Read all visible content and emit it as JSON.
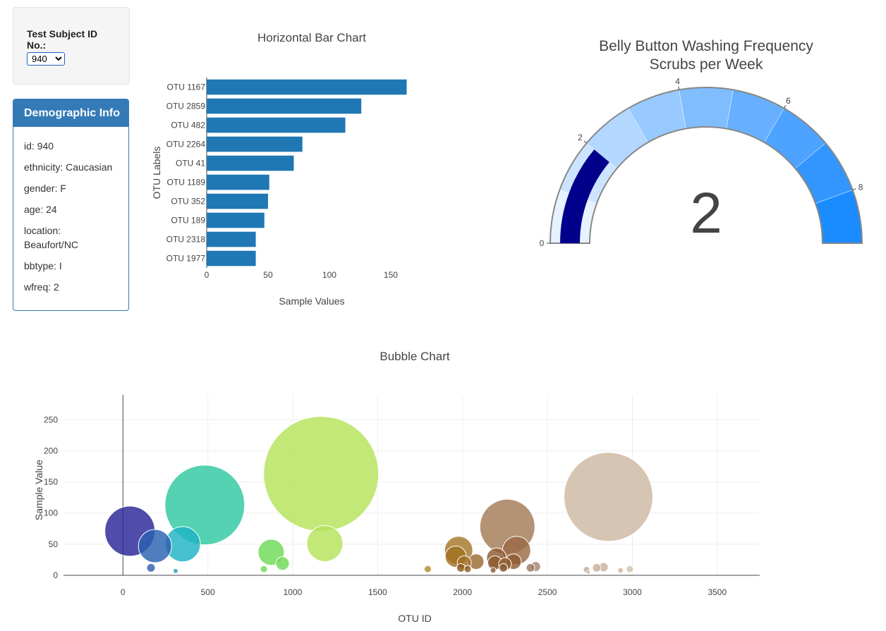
{
  "selector": {
    "label": "Test Subject ID No.:",
    "selected": "940"
  },
  "demographic": {
    "title": "Demographic Info",
    "lines": [
      "id: 940",
      "ethnicity: Caucasian",
      "gender: F",
      "age: 24",
      "location: Beaufort/NC",
      "bbtype: I",
      "wfreq: 2"
    ]
  },
  "colors": {
    "bar": "#1f77b4",
    "panel_accent": "#337ab7",
    "gauge_needle": "#00008b",
    "gauge_steps": [
      "#e6f2ff",
      "#cce4ff",
      "#b3d7ff",
      "#99caff",
      "#80bdff",
      "#66b0ff",
      "#4da3ff",
      "#3396ff",
      "#1a8cff"
    ]
  },
  "chart_data": [
    {
      "type": "bar",
      "orientation": "horizontal",
      "title": "Horizontal Bar Chart",
      "xlabel": "Sample Values",
      "ylabel": "OTU Labels",
      "xlim": [
        0,
        165
      ],
      "xticks": [
        0,
        50,
        100,
        150
      ],
      "categories": [
        "OTU 1167",
        "OTU 2859",
        "OTU 482",
        "OTU 2264",
        "OTU 41",
        "OTU 1189",
        "OTU 352",
        "OTU 189",
        "OTU 2318",
        "OTU 1977"
      ],
      "values": [
        163,
        126,
        113,
        78,
        71,
        51,
        50,
        47,
        40,
        40
      ]
    },
    {
      "type": "gauge",
      "title": "Belly Button Washing Frequency",
      "subtitle": "Scrubs per Week",
      "range": [
        0,
        9
      ],
      "ticks": [
        0,
        2,
        4,
        6,
        8
      ],
      "value": 2,
      "value_label": "2"
    },
    {
      "type": "scatter",
      "title": "Bubble Chart",
      "xlabel": "OTU ID",
      "ylabel": "Sample Value",
      "xlim": [
        -350,
        3750
      ],
      "ylim": [
        0,
        290
      ],
      "xticks": [
        0,
        500,
        1000,
        1500,
        2000,
        2500,
        3000,
        3500
      ],
      "yticks": [
        0,
        50,
        100,
        150,
        200,
        250
      ],
      "grid": true,
      "points": [
        {
          "x": 41,
          "y": 71,
          "color": "#2a2596"
        },
        {
          "x": 189,
          "y": 47,
          "color": "#2a62b0"
        },
        {
          "x": 352,
          "y": 50,
          "color": "#1fb3c5"
        },
        {
          "x": 482,
          "y": 113,
          "color": "#2ec8a0"
        },
        {
          "x": 165,
          "y": 12,
          "color": "#2f5fb0"
        },
        {
          "x": 310,
          "y": 7,
          "color": "#2a9fb8"
        },
        {
          "x": 873,
          "y": 37,
          "color": "#6fd957"
        },
        {
          "x": 940,
          "y": 19,
          "color": "#6fd957"
        },
        {
          "x": 830,
          "y": 10,
          "color": "#6fd957"
        },
        {
          "x": 1167,
          "y": 163,
          "color": "#b4e35a"
        },
        {
          "x": 1189,
          "y": 51,
          "color": "#b4e35a"
        },
        {
          "x": 1795,
          "y": 10,
          "color": "#b08f2a"
        },
        {
          "x": 1977,
          "y": 40,
          "color": "#a5782a"
        },
        {
          "x": 1960,
          "y": 30,
          "color": "#a07020"
        },
        {
          "x": 2010,
          "y": 20,
          "color": "#a07025"
        },
        {
          "x": 2080,
          "y": 22,
          "color": "#9a6a30"
        },
        {
          "x": 1990,
          "y": 12,
          "color": "#8e5a20"
        },
        {
          "x": 2030,
          "y": 10,
          "color": "#8e5a20"
        },
        {
          "x": 2264,
          "y": 78,
          "color": "#a37a55"
        },
        {
          "x": 2318,
          "y": 40,
          "color": "#9a6a45"
        },
        {
          "x": 2200,
          "y": 28,
          "color": "#8e5a30"
        },
        {
          "x": 2190,
          "y": 20,
          "color": "#8e5a30"
        },
        {
          "x": 2250,
          "y": 18,
          "color": "#8e5a30"
        },
        {
          "x": 2300,
          "y": 22,
          "color": "#8e5a35"
        },
        {
          "x": 2240,
          "y": 12,
          "color": "#8a5a35"
        },
        {
          "x": 2180,
          "y": 8,
          "color": "#8a5a35"
        },
        {
          "x": 2400,
          "y": 12,
          "color": "#a07a60"
        },
        {
          "x": 2430,
          "y": 14,
          "color": "#a58570"
        },
        {
          "x": 2859,
          "y": 126,
          "color": "#cdb8a2"
        },
        {
          "x": 2730,
          "y": 9,
          "color": "#c4a890"
        },
        {
          "x": 2790,
          "y": 12,
          "color": "#c8ae98"
        },
        {
          "x": 2830,
          "y": 13,
          "color": "#c8b09a"
        },
        {
          "x": 2930,
          "y": 8,
          "color": "#d0baa5"
        },
        {
          "x": 2985,
          "y": 10,
          "color": "#d4bfaa"
        },
        {
          "x": 2740,
          "y": 5,
          "color": "#c4a890"
        }
      ]
    }
  ]
}
